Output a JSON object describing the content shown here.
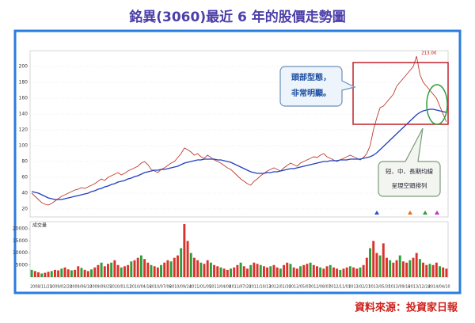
{
  "title": "銘異(3060)最近 6 年的股價走勢圖",
  "source": "資料來源：投資家日報",
  "annotations": {
    "head": [
      "頭部型態，",
      "非常明顯。"
    ],
    "bear": [
      "短、中、長期均線",
      "呈現空頭排列"
    ],
    "peak": "213.00"
  },
  "chart_data": [
    {
      "type": "line",
      "ylim": [
        10,
        220
      ],
      "yticks": [
        20,
        40,
        60,
        80,
        100,
        120,
        140,
        160,
        180,
        200
      ],
      "grid": true,
      "series": [
        {
          "color": "#c0392b",
          "values": [
            40,
            36,
            32,
            28,
            26,
            25,
            27,
            30,
            33,
            36,
            38,
            40,
            42,
            44,
            45,
            47,
            46,
            48,
            50,
            52,
            55,
            58,
            56,
            60,
            62,
            64,
            66,
            63,
            65,
            68,
            70,
            72,
            74,
            78,
            80,
            76,
            70,
            68,
            66,
            70,
            72,
            75,
            78,
            80,
            85,
            90,
            97,
            95,
            92,
            88,
            90,
            86,
            84,
            88,
            85,
            82,
            80,
            78,
            75,
            72,
            70,
            66,
            62,
            58,
            55,
            52,
            50,
            55,
            58,
            62,
            65,
            68,
            70,
            72,
            70,
            68,
            72,
            75,
            78,
            76,
            74,
            78,
            80,
            82,
            84,
            86,
            85,
            88,
            90,
            86,
            84,
            82,
            80,
            82,
            84,
            86,
            88,
            86,
            84,
            82,
            85,
            90,
            100,
            120,
            135,
            148,
            150,
            155,
            160,
            165,
            175,
            180,
            185,
            190,
            195,
            200,
            213,
            190,
            180,
            175,
            170,
            165,
            160,
            150,
            140,
            130
          ]
        },
        {
          "color": "#1f3fbf",
          "values": [
            42,
            41,
            40,
            38,
            36,
            34,
            33,
            32,
            32,
            32,
            33,
            34,
            35,
            36,
            37,
            38,
            39,
            40,
            42,
            43,
            45,
            46,
            48,
            49,
            51,
            52,
            54,
            55,
            56,
            58,
            59,
            61,
            62,
            64,
            66,
            67,
            68,
            69,
            69,
            70,
            70,
            71,
            72,
            73,
            74,
            76,
            78,
            79,
            80,
            81,
            82,
            82,
            83,
            83,
            83,
            83,
            82,
            82,
            81,
            80,
            79,
            77,
            75,
            73,
            71,
            69,
            67,
            66,
            65,
            65,
            65,
            66,
            66,
            67,
            67,
            68,
            69,
            70,
            71,
            71,
            72,
            73,
            74,
            75,
            76,
            77,
            78,
            79,
            80,
            80,
            81,
            81,
            81,
            82,
            82,
            82,
            83,
            83,
            83,
            83,
            84,
            85,
            86,
            88,
            91,
            95,
            99,
            103,
            107,
            111,
            115,
            119,
            123,
            127,
            131,
            135,
            139,
            142,
            144,
            145,
            146,
            146,
            145,
            144,
            143,
            142
          ]
        }
      ]
    },
    {
      "type": "bar",
      "title": "成交量",
      "color": "#d9342b",
      "ylim": [
        0,
        23000
      ],
      "yticks": [
        5000,
        10000,
        15000,
        20000
      ],
      "categories": [
        "2008/11/25",
        null,
        null,
        null,
        null,
        null,
        "2009/02/20",
        null,
        null,
        null,
        null,
        null,
        "2009/06/10",
        null,
        null,
        null,
        null,
        null,
        "2009/09/25",
        null,
        null,
        null,
        null,
        null,
        "2010/01/12",
        null,
        null,
        null,
        null,
        null,
        "2010/04/16",
        null,
        null,
        null,
        null,
        null,
        "2010/07/06",
        null,
        null,
        null,
        null,
        null,
        "2010/09/24",
        null,
        null,
        null,
        null,
        null,
        "2011/01/05",
        null,
        null,
        null,
        null,
        null,
        "2011/04/08",
        null,
        null,
        null,
        null,
        null,
        "2011/07/20",
        null,
        null,
        null,
        null,
        null,
        "2011/10/13",
        null,
        null,
        null,
        null,
        null,
        "2012/01/30",
        null,
        null,
        null,
        null,
        null,
        "2012/05/07",
        null,
        null,
        null,
        null,
        null,
        "2012/08/07",
        null,
        null,
        null,
        null,
        null,
        "2012/11/01",
        null,
        null,
        null,
        null,
        null,
        "2013/02/21",
        null,
        null,
        null,
        null,
        null,
        "2013/05/31",
        null,
        null,
        null,
        null,
        null,
        "2013/09/16",
        null,
        null,
        null,
        null,
        null,
        "2013/12/24",
        null,
        null,
        null,
        null,
        null,
        "2014/04/10",
        null,
        null,
        null,
        null,
        null
      ],
      "values": [
        3000,
        2500,
        2000,
        1500,
        1800,
        2200,
        2500,
        3000,
        2800,
        3500,
        4000,
        3200,
        2800,
        3000,
        4500,
        3800,
        3000,
        2500,
        3200,
        4000,
        5000,
        6000,
        4500,
        5500,
        6000,
        7000,
        5000,
        4000,
        4500,
        5000,
        6500,
        7000,
        8000,
        9000,
        7500,
        6000,
        5000,
        4500,
        4000,
        5000,
        6000,
        7000,
        6500,
        8000,
        9000,
        12000,
        22000,
        15000,
        10000,
        8000,
        7000,
        6000,
        5500,
        7000,
        6000,
        5000,
        4500,
        4000,
        3500,
        3000,
        3500,
        4000,
        5000,
        6000,
        4500,
        3500,
        5000,
        6000,
        5500,
        5000,
        4500,
        4000,
        4500,
        5000,
        4000,
        3500,
        5000,
        6000,
        5500,
        4000,
        3500,
        4500,
        5000,
        5500,
        6000,
        5000,
        4500,
        4000,
        3500,
        4500,
        5000,
        4000,
        3500,
        3000,
        3500,
        4000,
        4500,
        4000,
        3500,
        4000,
        5000,
        8000,
        12000,
        15000,
        10000,
        9000,
        14000,
        8000,
        7000,
        6000,
        7000,
        9000,
        6500,
        6000,
        7000,
        8000,
        10000,
        7500,
        6000,
        5000,
        5500,
        5000,
        6000,
        4500,
        4000,
        3500
      ]
    }
  ]
}
